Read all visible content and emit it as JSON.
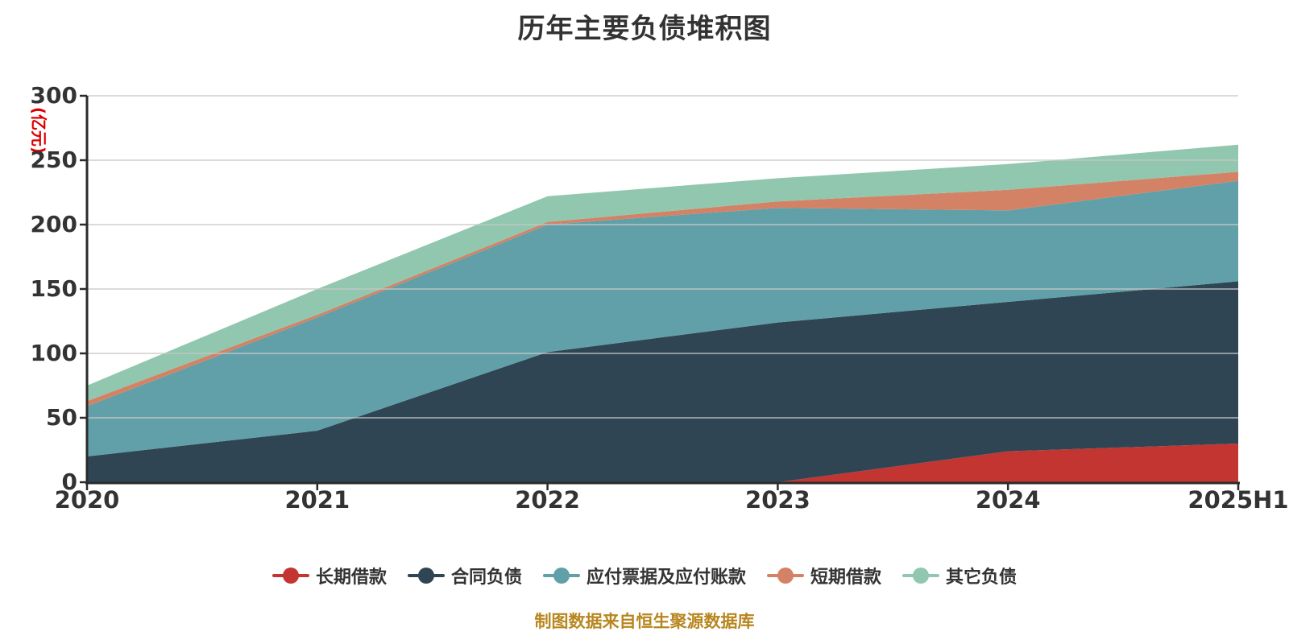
{
  "title": "历年主要负债堆积图",
  "y_axis": {
    "name": "(亿元)",
    "tick_labels": [
      "0",
      "50",
      "100",
      "150",
      "200",
      "250",
      "300"
    ]
  },
  "x_axis": {
    "tick_labels": [
      "2020",
      "2021",
      "2022",
      "2023",
      "2024",
      "2025H1"
    ]
  },
  "legend": {
    "items": [
      "长期借款",
      "合同负债",
      "应付票据及应付账款",
      "短期借款",
      "其它负债"
    ]
  },
  "footer": {
    "source_note": "制图数据来自恒生聚源数据库"
  },
  "colors": {
    "title_text": "#333333",
    "axis_text": "#333333",
    "axis_line": "#2b2b2b",
    "gridline": "#cccccc",
    "y_axis_name_text": "#dd0000",
    "source_note_text": "#b8861f",
    "background": "#ffffff"
  },
  "chart_data": {
    "type": "area",
    "stacked": true,
    "title": "历年主要负债堆积图",
    "ylabel": "(亿元)",
    "ylim": [
      0,
      300
    ],
    "yticks": [
      0,
      50,
      100,
      150,
      200,
      250,
      300
    ],
    "grid": true,
    "legend_position": "bottom",
    "x": [
      "2020",
      "2021",
      "2022",
      "2023",
      "2024",
      "2025H1"
    ],
    "series": [
      {
        "name": "长期借款",
        "color": "#c23531",
        "values": [
          0,
          0,
          0,
          0,
          24,
          30
        ]
      },
      {
        "name": "合同负债",
        "color": "#2f4554",
        "values": [
          20,
          40,
          101,
          124,
          116,
          126
        ]
      },
      {
        "name": "应付票据及应付账款",
        "color": "#61a0a8",
        "values": [
          39,
          88,
          99,
          89,
          71,
          78
        ]
      },
      {
        "name": "短期借款",
        "color": "#d48265",
        "values": [
          4,
          2,
          2,
          5,
          16,
          7
        ]
      },
      {
        "name": "其它负债",
        "color": "#91c7ae",
        "values": [
          12,
          20,
          20,
          18,
          20,
          21
        ]
      }
    ],
    "totals": [
      75,
      150,
      222,
      236,
      247,
      262
    ]
  }
}
